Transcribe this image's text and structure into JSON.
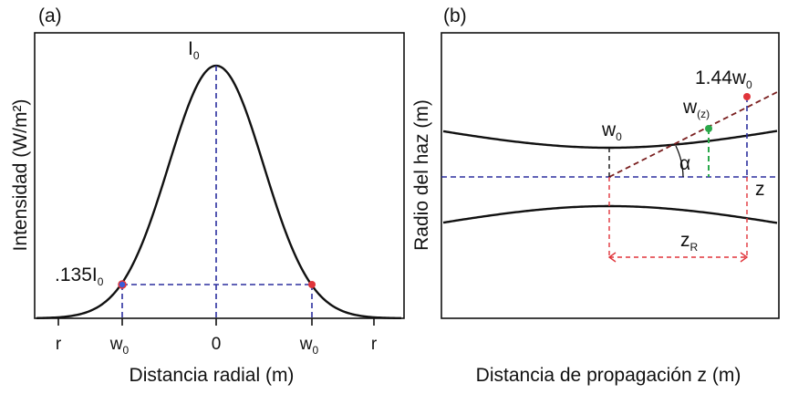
{
  "panel_a": {
    "tag": "(a)",
    "ylabel": "Intensidad (W/m²)",
    "xlabel": "Distancia radial (m)",
    "peak_label": "I",
    "peak_label_sub": "0",
    "point_label": ".135I",
    "point_label_sub": "0",
    "ticks": [
      {
        "text": "r",
        "sub": ""
      },
      {
        "text": "w",
        "sub": "0"
      },
      {
        "text": "0",
        "sub": ""
      },
      {
        "text": "w",
        "sub": "0"
      },
      {
        "text": "r",
        "sub": ""
      }
    ]
  },
  "panel_b": {
    "tag": "(b)",
    "ylabel": "Radio del haz (m)",
    "xlabel": "Distancia de propagación  z (m)",
    "waist_label": "w",
    "waist_label_sub": "0",
    "wz_label": "w",
    "wz_label_sub": "(z)",
    "rayleigh_point_label": "1.44w",
    "rayleigh_point_label_sub": "0",
    "angle_label": "α",
    "axis_label": "z",
    "zr_label": "z",
    "zr_label_sub": "R"
  },
  "colors": {
    "curve": "#111111",
    "guide_blue": "#2b2f9e",
    "guide_red": "#e0343a",
    "asymptote": "#7a1f1f",
    "green": "#2aa84a",
    "marker_red": "#e0343a",
    "marker_blue": "#3a5bd8"
  }
}
